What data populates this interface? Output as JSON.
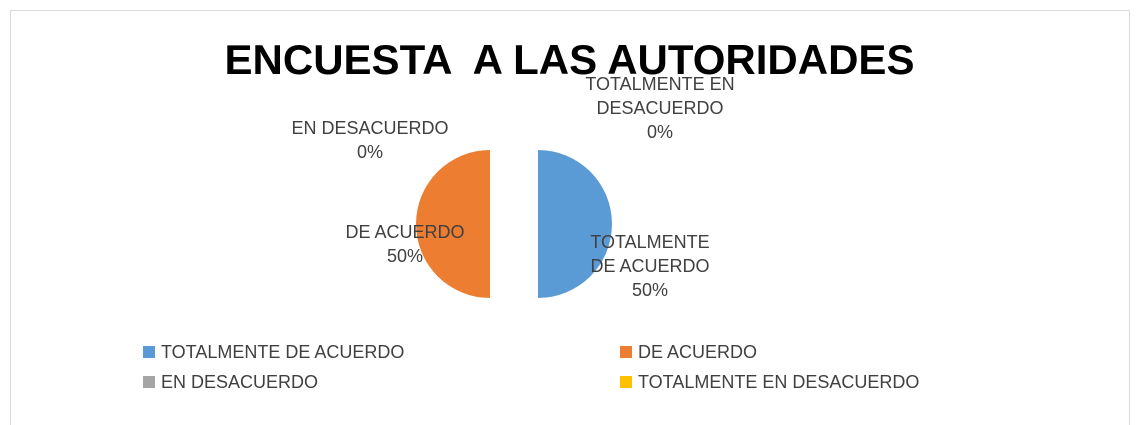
{
  "chart_data": {
    "type": "pie",
    "title": "ENCUESTA  A LAS AUTORIDADES",
    "categories": [
      "TOTALMENTE DE ACUERDO",
      "DE ACUERDO",
      "EN DESACUERDO",
      "TOTALMENTE EN DESACUERDO"
    ],
    "values": [
      50,
      50,
      0,
      0
    ],
    "value_labels": [
      "50%",
      "50%",
      "0%",
      "0%"
    ],
    "colors": [
      "#5b9bd5",
      "#ed7d31",
      "#a5a5a5",
      "#ffc000"
    ],
    "legend": "bottom"
  }
}
